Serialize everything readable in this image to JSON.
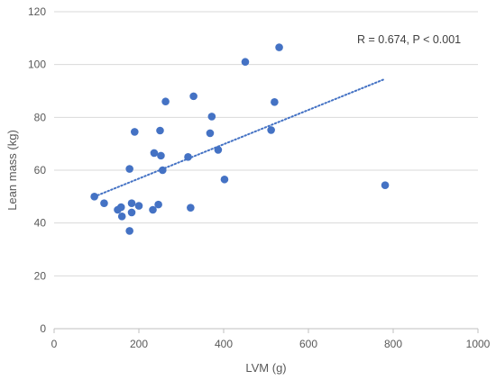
{
  "chart_data": {
    "type": "scatter",
    "title": "",
    "xlabel": "LVM  (g)",
    "ylabel": "Lean mass (kg)",
    "xlim": [
      0,
      1000
    ],
    "ylim": [
      0,
      120
    ],
    "x_ticks": [
      0,
      200,
      400,
      600,
      800,
      1000
    ],
    "y_ticks": [
      0,
      20,
      40,
      60,
      80,
      100,
      120
    ],
    "grid": "horizontal",
    "legend": "none",
    "annotation": "R = 0.674, P < 0.001",
    "marker_color": "#4472C4",
    "trendline": {
      "type": "linear",
      "style": "dotted",
      "color": "#4472C4",
      "x_range": [
        95,
        780
      ],
      "y_range": [
        50,
        94.5
      ]
    },
    "series": [
      {
        "points": [
          [
            95,
            50
          ],
          [
            118,
            47.5
          ],
          [
            150,
            45
          ],
          [
            158,
            46
          ],
          [
            160,
            42.5
          ],
          [
            178,
            37
          ],
          [
            178,
            60.5
          ],
          [
            183,
            47.5
          ],
          [
            183,
            44
          ],
          [
            190,
            74.5
          ],
          [
            200,
            46.5
          ],
          [
            233,
            45
          ],
          [
            236,
            66.5
          ],
          [
            246,
            47
          ],
          [
            250,
            75
          ],
          [
            252,
            65.5
          ],
          [
            256,
            60
          ],
          [
            263,
            86
          ],
          [
            316,
            65
          ],
          [
            322,
            45.8
          ],
          [
            329,
            88
          ],
          [
            368,
            74
          ],
          [
            372,
            80.3
          ],
          [
            387,
            67.7
          ],
          [
            402,
            56.5
          ],
          [
            451,
            101
          ],
          [
            512,
            75.2
          ],
          [
            520,
            85.8
          ],
          [
            531,
            106.5
          ],
          [
            781,
            54.3
          ]
        ]
      }
    ]
  }
}
